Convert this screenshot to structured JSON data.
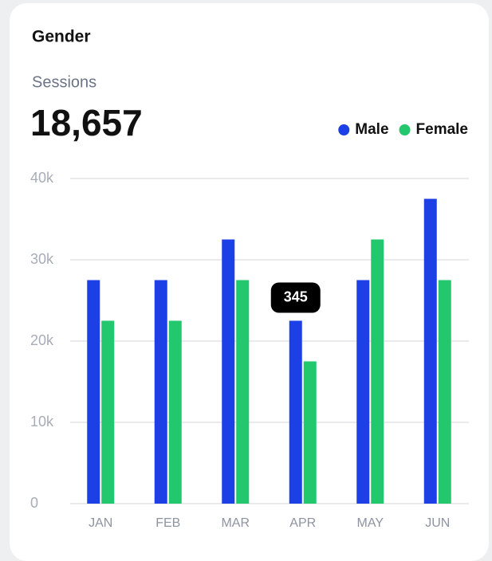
{
  "chart_data": {
    "type": "bar",
    "title": "Gender",
    "subtitle": "Sessions",
    "headline": "18,657",
    "categories": [
      "JAN",
      "FEB",
      "MAR",
      "APR",
      "MAY",
      "JUN"
    ],
    "series": [
      {
        "name": "Male",
        "color": "#1d3fe6",
        "values": [
          27500,
          27500,
          32500,
          22500,
          27500,
          37500
        ]
      },
      {
        "name": "Female",
        "color": "#22c76e",
        "values": [
          22500,
          22500,
          27500,
          17500,
          32500,
          27500
        ]
      }
    ],
    "ylim": [
      0,
      40000
    ],
    "yticks": [
      0,
      {
        "value": 10000,
        "label": "10k"
      },
      {
        "value": 20000,
        "label": "20k"
      },
      {
        "value": 30000,
        "label": "30k"
      },
      {
        "value": 40000,
        "label": "40k"
      }
    ],
    "grid": true,
    "legend": "top-right",
    "tooltip": {
      "category": 3,
      "text": "345"
    }
  }
}
